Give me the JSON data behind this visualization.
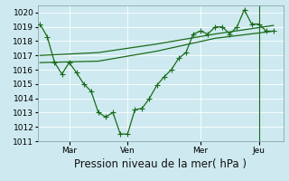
{
  "title": "Pression niveau de la mer( hPa )",
  "bg_color": "#ceeaf0",
  "grid_color": "#b8d8e0",
  "grid_color2": "#ffffff",
  "line_color": "#1a6b1a",
  "ylim": [
    1011,
    1020.5
  ],
  "yticks": [
    1011,
    1012,
    1013,
    1014,
    1015,
    1016,
    1017,
    1018,
    1019,
    1020
  ],
  "xtick_labels": [
    "Mar",
    "Ven",
    "Mer",
    "Jeu"
  ],
  "xtick_positions": [
    24,
    72,
    132,
    180
  ],
  "series1_x": [
    0,
    6,
    12,
    18,
    24,
    30,
    36,
    42,
    48,
    54,
    60,
    66,
    72,
    78,
    84,
    90,
    96,
    102,
    108,
    114,
    120,
    126,
    132,
    138,
    144,
    150,
    156,
    162,
    168,
    174,
    180,
    186,
    192
  ],
  "series1_y": [
    1019.2,
    1018.3,
    1016.5,
    1015.7,
    1016.5,
    1015.8,
    1015.0,
    1014.5,
    1013.0,
    1012.7,
    1013.0,
    1011.5,
    1011.5,
    1013.2,
    1013.3,
    1014.0,
    1014.9,
    1015.5,
    1016.0,
    1016.8,
    1017.2,
    1018.5,
    1018.7,
    1018.5,
    1019.0,
    1019.0,
    1018.5,
    1019.0,
    1020.2,
    1019.2,
    1019.2,
    1018.7,
    1018.7
  ],
  "series2_x": [
    0,
    48,
    96,
    144,
    192
  ],
  "series2_y": [
    1016.5,
    1016.6,
    1017.3,
    1018.2,
    1018.7
  ],
  "series3_x": [
    0,
    48,
    96,
    144,
    192
  ],
  "series3_y": [
    1017.0,
    1017.2,
    1017.8,
    1018.5,
    1019.1
  ],
  "vline_x": 180,
  "font_size_title": 8.5,
  "font_size_ticks": 6.5
}
